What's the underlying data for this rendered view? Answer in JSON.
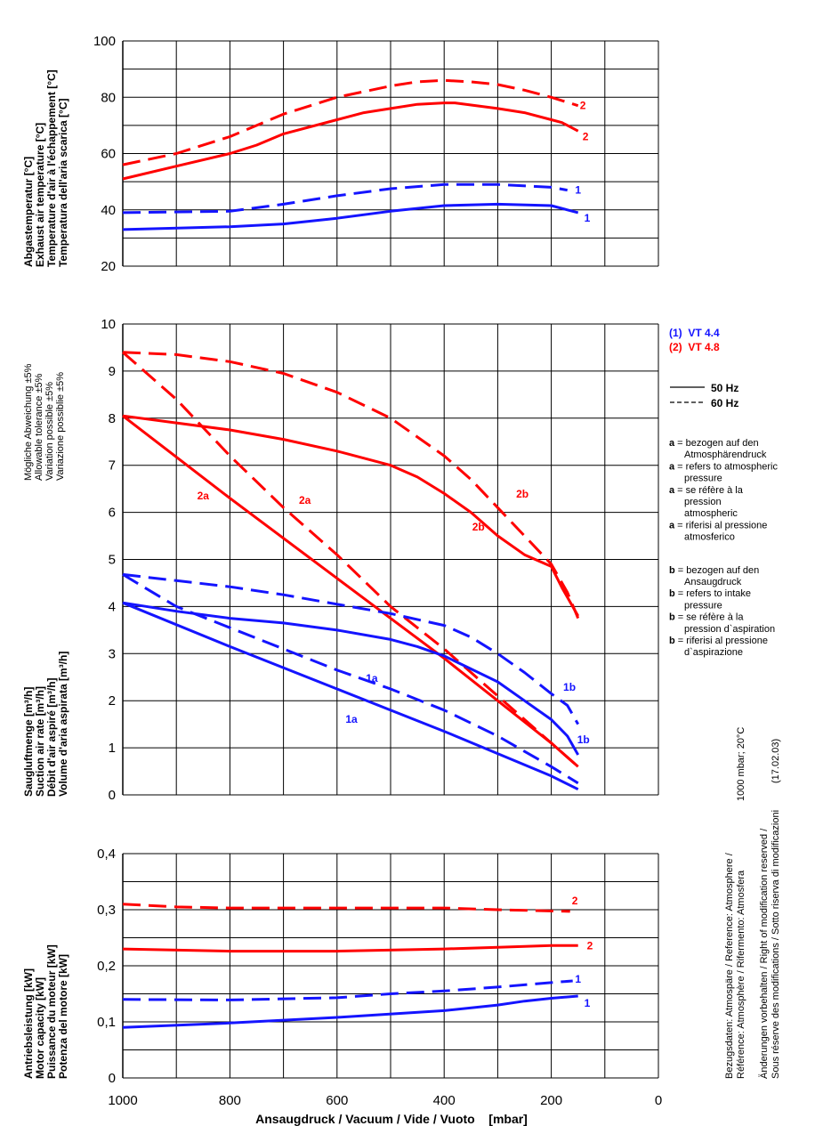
{
  "colors": {
    "model_1": "#1414ff",
    "model_2": "#ff0000",
    "grid": "#000000"
  },
  "legend": {
    "models": [
      "(1)  VT 4.4",
      "(2)  VT 4.8"
    ],
    "freq": [
      "50 Hz",
      "60 Hz"
    ],
    "notes": [
      [
        "a",
        " = bezogen auf den"
      ],
      [
        "",
        "Atmosphärendruck"
      ],
      [
        "a",
        " = refers to atmospheric"
      ],
      [
        "",
        "pressure"
      ],
      [
        "a",
        " = se réfère à la"
      ],
      [
        "",
        "pression"
      ],
      [
        "",
        "atmospheric"
      ],
      [
        "a",
        " = riferisi al pressione"
      ],
      [
        "",
        "atmosferico"
      ],
      [
        "b",
        " = bezogen auf den"
      ],
      [
        "",
        "Ansaugdruck"
      ],
      [
        "b",
        " = refers to intake"
      ],
      [
        "",
        "pressure"
      ],
      [
        "b",
        " = se réfère à la"
      ],
      [
        "",
        "pression d`aspiration"
      ],
      [
        "b",
        " = riferisi al pressione"
      ],
      [
        "",
        "d`aspirazione"
      ]
    ]
  },
  "side_notes": {
    "line1": "Bezugsdaten: Atmospäre / Reference: Atmosphere /",
    "line2": "Référence: Atmosphère / Rifermento: Atmosfera",
    "conditions": "1000 mbar; 20°C",
    "line3": "Änderungen vorbehalten / Right of modification reserved /",
    "line4": "Sous réserve des modifications / Sotto riserva di modificazioni",
    "date": "(17.02.03)"
  },
  "xaxis": {
    "label": "Ansaugdruck / Vacuum / Vide / Vuoto    [mbar]",
    "ticks": [
      "1000",
      "800",
      "600",
      "400",
      "200",
      "0"
    ],
    "range": [
      1000,
      0
    ]
  },
  "tolerance": [
    "Mögliche Abweichung ±5%",
    "Allowable tolerance ±5%",
    "Variation possible ±5%",
    "Variazione possiblie ±5%"
  ],
  "chart_data": [
    {
      "type": "line",
      "ylabel": [
        "Abgastemperatur [°C]",
        "Exhaust air temperature [°C]",
        "Temperature d'air à l'échappement [°C]",
        "Temperatura dell'aria scarica [°C]"
      ],
      "ylim": [
        20,
        100
      ],
      "yticks": [
        "100",
        "80",
        "60",
        "40",
        "20"
      ],
      "series": [
        {
          "model": "VT 4.8",
          "freq": "60 Hz",
          "color": "#ff0000",
          "dashed": true,
          "points": [
            [
              1000,
              56
            ],
            [
              900,
              60
            ],
            [
              800,
              66
            ],
            [
              700,
              74
            ],
            [
              600,
              80
            ],
            [
              500,
              84
            ],
            [
              450,
              85.5
            ],
            [
              400,
              86
            ],
            [
              350,
              85.5
            ],
            [
              300,
              84.5
            ],
            [
              250,
              82.5
            ],
            [
              200,
              80
            ],
            [
              150,
              77
            ]
          ]
        },
        {
          "model": "VT 4.8",
          "freq": "50 Hz",
          "color": "#ff0000",
          "dashed": false,
          "points": [
            [
              1000,
              51
            ],
            [
              900,
              55.5
            ],
            [
              800,
              60
            ],
            [
              750,
              63
            ],
            [
              700,
              67
            ],
            [
              600,
              72
            ],
            [
              550,
              74.5
            ],
            [
              500,
              76
            ],
            [
              450,
              77.5
            ],
            [
              400,
              78
            ],
            [
              380,
              78
            ],
            [
              300,
              76
            ],
            [
              250,
              74.5
            ],
            [
              200,
              72
            ],
            [
              180,
              71
            ],
            [
              150,
              68
            ]
          ]
        },
        {
          "model": "VT 4.4",
          "freq": "60 Hz",
          "color": "#1414ff",
          "dashed": true,
          "points": [
            [
              1000,
              39
            ],
            [
              800,
              39.5
            ],
            [
              700,
              42
            ],
            [
              600,
              45
            ],
            [
              500,
              47.5
            ],
            [
              400,
              49
            ],
            [
              300,
              49
            ],
            [
              200,
              48
            ],
            [
              170,
              47
            ]
          ]
        },
        {
          "model": "VT 4.4",
          "freq": "50 Hz",
          "color": "#1414ff",
          "dashed": false,
          "points": [
            [
              1000,
              33
            ],
            [
              800,
              34
            ],
            [
              700,
              35
            ],
            [
              600,
              37
            ],
            [
              500,
              39.5
            ],
            [
              400,
              41.5
            ],
            [
              300,
              42
            ],
            [
              200,
              41.5
            ],
            [
              170,
              40
            ],
            [
              150,
              39
            ]
          ]
        }
      ],
      "annotations": [
        {
          "text": "2",
          "x": 141,
          "y": 77,
          "color": "#ff0000"
        },
        {
          "text": "2",
          "x": 136,
          "y": 66,
          "color": "#ff0000"
        },
        {
          "text": "1",
          "x": 150,
          "y": 47,
          "color": "#1414ff"
        },
        {
          "text": "1",
          "x": 133,
          "y": 37,
          "color": "#1414ff"
        }
      ]
    },
    {
      "type": "line",
      "ylabel": [
        "Saugluftmenge [m³/h]",
        "Suction air rate [m³/h]",
        "Débit d'air aspiré [m³/h]",
        "Volume d'aria aspirata [m³/h]"
      ],
      "ylim": [
        0,
        10
      ],
      "yticks": [
        "10",
        "9",
        "8",
        "7",
        "6",
        "5",
        "4",
        "3",
        "2",
        "1",
        "0"
      ],
      "series": [
        {
          "model": "VT 4.8",
          "freq": "60 Hz",
          "curve": "2b",
          "color": "#ff0000",
          "dashed": true,
          "points": [
            [
              1000,
              9.4
            ],
            [
              900,
              9.35
            ],
            [
              800,
              9.2
            ],
            [
              700,
              8.95
            ],
            [
              600,
              8.55
            ],
            [
              500,
              8.0
            ],
            [
              400,
              7.2
            ],
            [
              350,
              6.7
            ],
            [
              300,
              6.1
            ],
            [
              250,
              5.5
            ],
            [
              200,
              4.9
            ],
            [
              170,
              4.3
            ],
            [
              150,
              3.75
            ]
          ]
        },
        {
          "model": "VT 4.8",
          "freq": "50 Hz",
          "curve": "2b",
          "color": "#ff0000",
          "dashed": false,
          "points": [
            [
              1000,
              8.05
            ],
            [
              900,
              7.9
            ],
            [
              800,
              7.75
            ],
            [
              700,
              7.55
            ],
            [
              600,
              7.3
            ],
            [
              500,
              7.0
            ],
            [
              450,
              6.75
            ],
            [
              400,
              6.4
            ],
            [
              350,
              6.0
            ],
            [
              300,
              5.5
            ],
            [
              250,
              5.1
            ],
            [
              200,
              4.85
            ],
            [
              180,
              4.4
            ],
            [
              150,
              3.8
            ]
          ]
        },
        {
          "model": "VT 4.8",
          "freq": "60 Hz",
          "curve": "2a",
          "color": "#ff0000",
          "dashed": true,
          "points": [
            [
              1000,
              9.4
            ],
            [
              900,
              8.4
            ],
            [
              800,
              7.2
            ],
            [
              700,
              6.1
            ],
            [
              600,
              5.1
            ],
            [
              500,
              4.0
            ],
            [
              400,
              3.1
            ],
            [
              300,
              2.1
            ],
            [
              200,
              1.1
            ],
            [
              150,
              0.6
            ]
          ]
        },
        {
          "model": "VT 4.8",
          "freq": "50 Hz",
          "curve": "2a",
          "color": "#ff0000",
          "dashed": false,
          "points": [
            [
              1000,
              8.05
            ],
            [
              800,
              6.3
            ],
            [
              600,
              4.6
            ],
            [
              400,
              2.9
            ],
            [
              200,
              1.1
            ],
            [
              150,
              0.6
            ]
          ]
        },
        {
          "model": "VT 4.4",
          "freq": "60 Hz",
          "curve": "1b",
          "color": "#1414ff",
          "dashed": true,
          "points": [
            [
              1000,
              4.68
            ],
            [
              900,
              4.55
            ],
            [
              800,
              4.42
            ],
            [
              700,
              4.25
            ],
            [
              600,
              4.05
            ],
            [
              500,
              3.85
            ],
            [
              400,
              3.6
            ],
            [
              350,
              3.35
            ],
            [
              300,
              3.0
            ],
            [
              250,
              2.6
            ],
            [
              200,
              2.15
            ],
            [
              170,
              1.9
            ],
            [
              150,
              1.5
            ]
          ]
        },
        {
          "model": "VT 4.4",
          "freq": "50 Hz",
          "curve": "1b",
          "color": "#1414ff",
          "dashed": false,
          "points": [
            [
              1000,
              4.08
            ],
            [
              900,
              3.9
            ],
            [
              800,
              3.75
            ],
            [
              700,
              3.65
            ],
            [
              600,
              3.5
            ],
            [
              500,
              3.3
            ],
            [
              450,
              3.15
            ],
            [
              400,
              2.95
            ],
            [
              300,
              2.4
            ],
            [
              250,
              2.0
            ],
            [
              200,
              1.6
            ],
            [
              170,
              1.25
            ],
            [
              150,
              0.85
            ]
          ]
        },
        {
          "model": "VT 4.4",
          "freq": "60 Hz",
          "curve": "1a",
          "color": "#1414ff",
          "dashed": true,
          "points": [
            [
              1000,
              4.68
            ],
            [
              900,
              4.0
            ],
            [
              800,
              3.55
            ],
            [
              700,
              3.1
            ],
            [
              600,
              2.65
            ],
            [
              500,
              2.25
            ],
            [
              400,
              1.8
            ],
            [
              300,
              1.25
            ],
            [
              200,
              0.6
            ],
            [
              150,
              0.25
            ]
          ]
        },
        {
          "model": "VT 4.4",
          "freq": "50 Hz",
          "curve": "1a",
          "color": "#1414ff",
          "dashed": false,
          "points": [
            [
              1000,
              4.08
            ],
            [
              800,
              3.15
            ],
            [
              600,
              2.25
            ],
            [
              400,
              1.35
            ],
            [
              200,
              0.4
            ],
            [
              150,
              0.12
            ]
          ]
        }
      ],
      "annotations": [
        {
          "text": "2a",
          "x": 850,
          "y": 6.35,
          "color": "#ff0000"
        },
        {
          "text": "2a",
          "x": 660,
          "y": 6.26,
          "color": "#ff0000"
        },
        {
          "text": "2b",
          "x": 254,
          "y": 6.39,
          "color": "#ff0000"
        },
        {
          "text": "2b",
          "x": 336,
          "y": 5.69,
          "color": "#ff0000"
        },
        {
          "text": "1a",
          "x": 535,
          "y": 2.48,
          "color": "#1414ff"
        },
        {
          "text": "1a",
          "x": 573,
          "y": 1.61,
          "color": "#1414ff"
        },
        {
          "text": "1b",
          "x": 166,
          "y": 2.29,
          "color": "#1414ff"
        },
        {
          "text": "1b",
          "x": 140,
          "y": 1.17,
          "color": "#1414ff"
        }
      ]
    },
    {
      "type": "line",
      "ylabel": [
        "Antriebsleistung [kW]",
        "Motor capacity [kW]",
        "Puissance du moteur [kW]",
        "Potenza del motore [kW]"
      ],
      "ylim": [
        0,
        0.4
      ],
      "yticks": [
        "0,4",
        "0,3",
        "0,2",
        "0,1",
        "0"
      ],
      "series": [
        {
          "model": "VT 4.8",
          "freq": "60 Hz",
          "color": "#ff0000",
          "dashed": true,
          "points": [
            [
              1000,
              0.31
            ],
            [
              900,
              0.305
            ],
            [
              800,
              0.303
            ],
            [
              600,
              0.303
            ],
            [
              400,
              0.303
            ],
            [
              300,
              0.3
            ],
            [
              165,
              0.297
            ]
          ]
        },
        {
          "model": "VT 4.8",
          "freq": "50 Hz",
          "color": "#ff0000",
          "dashed": false,
          "points": [
            [
              1000,
              0.23
            ],
            [
              800,
              0.226
            ],
            [
              600,
              0.226
            ],
            [
              400,
              0.23
            ],
            [
              300,
              0.233
            ],
            [
              200,
              0.236
            ],
            [
              150,
              0.236
            ]
          ]
        },
        {
          "model": "VT 4.4",
          "freq": "60 Hz",
          "color": "#1414ff",
          "dashed": true,
          "points": [
            [
              1000,
              0.14
            ],
            [
              800,
              0.139
            ],
            [
              600,
              0.143
            ],
            [
              500,
              0.15
            ],
            [
              400,
              0.155
            ],
            [
              300,
              0.162
            ],
            [
              200,
              0.17
            ],
            [
              160,
              0.173
            ]
          ]
        },
        {
          "model": "VT 4.4",
          "freq": "50 Hz",
          "color": "#1414ff",
          "dashed": false,
          "points": [
            [
              1000,
              0.09
            ],
            [
              800,
              0.098
            ],
            [
              600,
              0.108
            ],
            [
              400,
              0.12
            ],
            [
              300,
              0.13
            ],
            [
              250,
              0.137
            ],
            [
              200,
              0.142
            ],
            [
              150,
              0.146
            ]
          ]
        }
      ],
      "annotations": [
        {
          "text": "2",
          "x": 156,
          "y": 0.316,
          "color": "#ff0000"
        },
        {
          "text": "2",
          "x": 128,
          "y": 0.236,
          "color": "#ff0000"
        },
        {
          "text": "1",
          "x": 150,
          "y": 0.176,
          "color": "#1414ff"
        },
        {
          "text": "1",
          "x": 133,
          "y": 0.133,
          "color": "#1414ff"
        }
      ]
    }
  ]
}
